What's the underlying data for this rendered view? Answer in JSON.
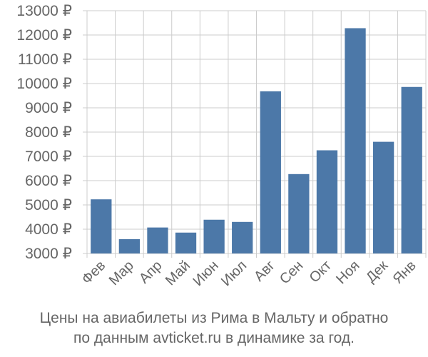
{
  "chart_data": {
    "type": "bar",
    "categories": [
      "Фев",
      "Мар",
      "Апр",
      "Май",
      "Июн",
      "Июл",
      "Авг",
      "Сен",
      "Окт",
      "Ноя",
      "Дек",
      "Янв"
    ],
    "values": [
      5230,
      3590,
      4070,
      3860,
      4390,
      4300,
      9680,
      6270,
      7250,
      12280,
      7600,
      9860
    ],
    "ylim": [
      3000,
      13000
    ],
    "yticks": [
      3000,
      4000,
      5000,
      6000,
      7000,
      8000,
      9000,
      10000,
      11000,
      12000,
      13000
    ],
    "ytick_labels": [
      "3000 ₽",
      "4000 ₽",
      "5000 ₽",
      "6000 ₽",
      "7000 ₽",
      "8000 ₽",
      "9000 ₽",
      "10000 ₽",
      "11000 ₽",
      "12000 ₽",
      "13000 ₽"
    ],
    "grid": true,
    "bar_color": "#4c78a8",
    "grid_color": "#cccccc"
  },
  "caption": {
    "line1": "Цены на авиабилеты из Рима в Мальту и обратно",
    "line2": "по данным avticket.ru в динамике за год."
  }
}
